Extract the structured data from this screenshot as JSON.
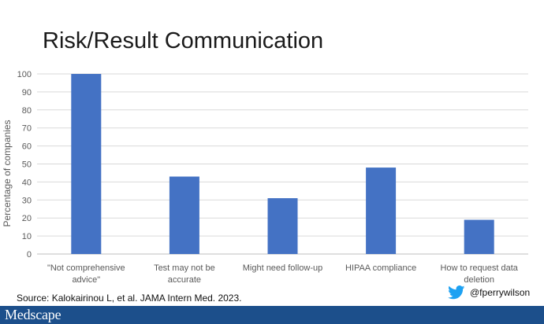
{
  "slide": {
    "title": "Risk/Result Communication",
    "source": "Source: Kalokairinou L, et al. JAMA Intern Med. 2023.",
    "twitter_handle": "@fperrywilson",
    "logo": "Medscape"
  },
  "colors": {
    "bar": "#4472c4",
    "footer": "#1c4f8b",
    "twitter": "#1da1f2",
    "gridline": "#d9d9d9"
  },
  "chart_data": {
    "type": "bar",
    "categories": [
      [
        "\"Not comprehensive",
        "advice\""
      ],
      [
        "Test may not be",
        "accurate"
      ],
      [
        "Might need follow-up"
      ],
      [
        "HIPAA compliance"
      ],
      [
        "How to request data",
        "deletion"
      ]
    ],
    "values": [
      100,
      43,
      31,
      48,
      19
    ],
    "ylabel": "Percentage of companies",
    "ylim": [
      0,
      100
    ],
    "yticks": [
      0,
      10,
      20,
      30,
      40,
      50,
      60,
      70,
      80,
      90,
      100
    ],
    "grid": true
  }
}
